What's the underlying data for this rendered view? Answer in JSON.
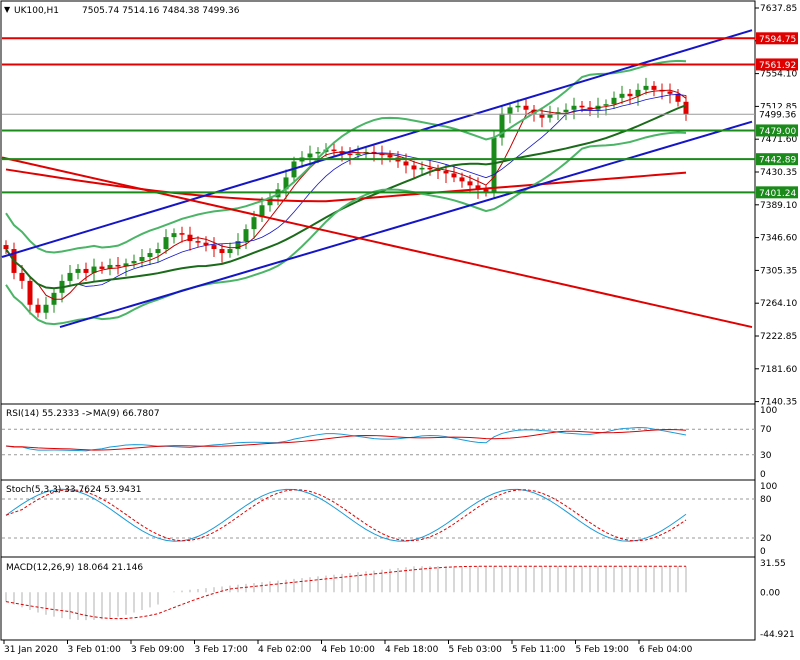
{
  "header": {
    "symbol": "UK100,H1",
    "ohlc": "7505.74 7514.16 7484.38 7499.36"
  },
  "colors": {
    "up": "#1a8a1a",
    "down": "#e00000",
    "channel": "#1515c8",
    "bollinger": "#4bb567",
    "hline_red": "#e00000",
    "hline_green": "#1a8a1a",
    "rsi": "#1a9bd8",
    "rsi_ma": "#e00000",
    "stoch_main": "#1a9bd8",
    "stoch_signal": "#e00000",
    "macd_hist": "#b0b0b0",
    "macd_signal": "#e00000"
  },
  "price_axis": {
    "ticks": [
      "7637.85",
      "7596.10",
      "7554.10",
      "7512.85",
      "7471.60",
      "7430.35",
      "7389.10",
      "7346.60",
      "7305.35",
      "7264.10",
      "7222.85",
      "7181.60",
      "7140.35"
    ],
    "labels_red": [
      "7594.75",
      "7561.92"
    ],
    "label_current": "7499.36",
    "labels_green": [
      "7479.00",
      "7442.89",
      "7401.24"
    ]
  },
  "time_axis": [
    "31 Jan 2020",
    "3 Feb 01:00",
    "3 Feb 09:00",
    "3 Feb 17:00",
    "4 Feb 02:00",
    "4 Feb 10:00",
    "4 Feb 18:00",
    "5 Feb 03:00",
    "5 Feb 11:00",
    "5 Feb 19:00",
    "6 Feb 04:00"
  ],
  "rsi": {
    "label": "RSI(14) 55.2333  ->MA(9) 66.7807",
    "ticks": [
      "100",
      "70",
      "30",
      "0"
    ]
  },
  "stoch": {
    "label": "Stoch(5,3,3) 33.7624 53.9431",
    "ticks": [
      "100",
      "80",
      "20",
      "0"
    ]
  },
  "macd": {
    "label": "MACD(12,26,9) 18.064 21.146",
    "ticks": [
      "31.55",
      "0.00",
      "-44.921"
    ]
  },
  "chart_data": {
    "type": "line",
    "title": "UK100,H1",
    "ylim": [
      7140.35,
      7637.85
    ],
    "horizontal_levels": [
      {
        "value": 7594.75,
        "kind": "resistance"
      },
      {
        "value": 7561.92,
        "kind": "resistance"
      },
      {
        "value": 7479.0,
        "kind": "support"
      },
      {
        "value": 7442.89,
        "kind": "support"
      },
      {
        "value": 7401.24,
        "kind": "support"
      }
    ],
    "close_approx": [
      7330,
      7300,
      7290,
      7260,
      7250,
      7260,
      7275,
      7290,
      7300,
      7305,
      7300,
      7308,
      7305,
      7310,
      7308,
      7312,
      7315,
      7320,
      7325,
      7330,
      7345,
      7350,
      7348,
      7340,
      7338,
      7335,
      7330,
      7325,
      7330,
      7340,
      7355,
      7370,
      7385,
      7395,
      7405,
      7420,
      7440,
      7445,
      7450,
      7452,
      7455,
      7453,
      7450,
      7448,
      7450,
      7452,
      7450,
      7448,
      7445,
      7440,
      7435,
      7430,
      7432,
      7430,
      7428,
      7425,
      7420,
      7415,
      7410,
      7405,
      7402,
      7470,
      7500,
      7508,
      7510,
      7505,
      7500,
      7495,
      7500,
      7502,
      7505,
      7510,
      7508,
      7505,
      7510,
      7512,
      7520,
      7525,
      7522,
      7530,
      7535,
      7530,
      7528,
      7525,
      7515,
      7499
    ]
  }
}
